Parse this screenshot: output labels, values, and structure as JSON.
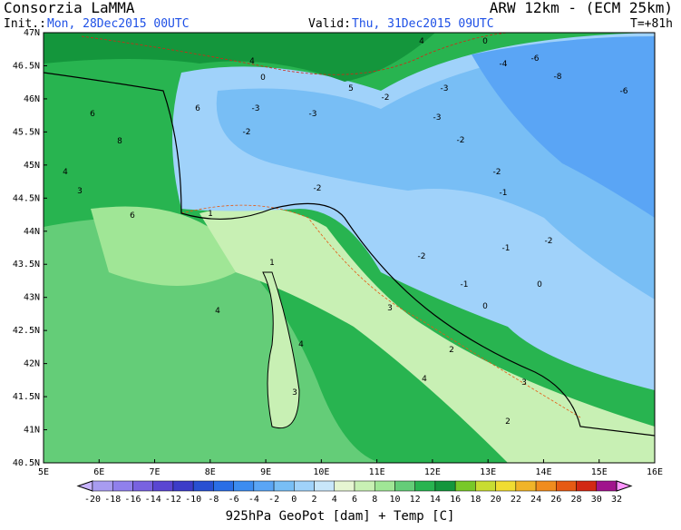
{
  "header": {
    "title": "Consorzia LaMMA",
    "model": "ARW 12km - (ECM 25km)",
    "init_label": "Init.:",
    "init": "Mon, 28Dec2015 00UTC",
    "valid_label": "Valid:",
    "valid": "Thu, 31Dec2015 09UTC",
    "lead": "T=+81h"
  },
  "axes": {
    "lat": [
      "47N",
      "46.5N",
      "46N",
      "45.5N",
      "45N",
      "44.5N",
      "44N",
      "43.5N",
      "43N",
      "42.5N",
      "42N",
      "41.5N",
      "41N",
      "40.5N"
    ],
    "lon": [
      "5E",
      "6E",
      "7E",
      "8E",
      "9E",
      "10E",
      "11E",
      "12E",
      "13E",
      "14E",
      "15E",
      "16E"
    ]
  },
  "colorbar": {
    "ticks": [
      -20,
      -18,
      -16,
      -14,
      -12,
      -10,
      -8,
      -6,
      -4,
      -2,
      0,
      2,
      4,
      6,
      8,
      10,
      12,
      14,
      16,
      18,
      20,
      22,
      24,
      26,
      28,
      30,
      32
    ],
    "colors": [
      "#c8b4ff",
      "#a89cf0",
      "#9080ec",
      "#7862e0",
      "#5a46d2",
      "#3c3cc8",
      "#2850d2",
      "#2a6ee6",
      "#3c8cf0",
      "#5aa5f5",
      "#78bef5",
      "#a0d2fa",
      "#c8e6fa",
      "#e6f5d2",
      "#c8f0b4",
      "#a0e696",
      "#64cd78",
      "#28b450",
      "#14963c",
      "#78c828",
      "#c8dc32",
      "#f0dc32",
      "#f0b428",
      "#f08c1e",
      "#e65a14",
      "#d22814",
      "#a0148c",
      "#ff96ff"
    ]
  },
  "map_labels": [
    "4",
    "6",
    "6",
    "8",
    "4",
    "3",
    "6",
    "-3",
    "-3",
    "-2",
    "-2",
    "-3",
    "-3",
    "-2",
    "-2",
    "-1",
    "-2",
    "-1",
    "-2",
    "-1",
    "-2",
    "1",
    "1",
    "4",
    "3",
    "4",
    "2",
    "4",
    "3",
    "2",
    "3",
    "-4",
    "-6",
    "-8",
    "-6",
    "0",
    "0",
    "4",
    "0",
    "5",
    "0"
  ],
  "footer": "925hPa GeoPot [dam] + Temp [C]"
}
